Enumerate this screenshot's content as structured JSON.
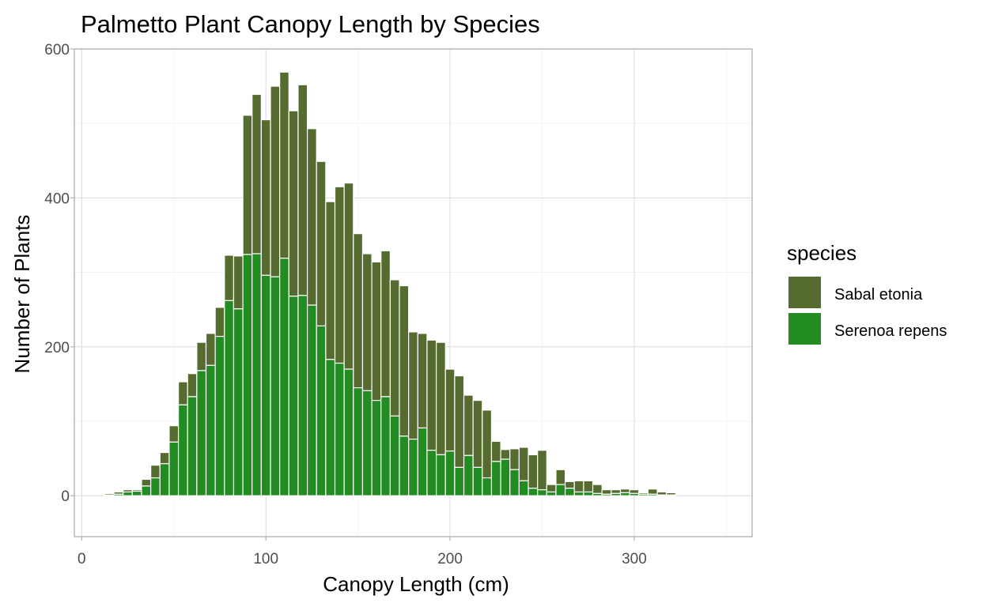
{
  "chart_data": {
    "type": "bar",
    "stacked": true,
    "title": "Palmetto Plant Canopy Length by Species",
    "xlabel": "Canopy Length (cm)",
    "ylabel": "Number of Plants",
    "xlim": [
      -4,
      364
    ],
    "ylim": [
      -55,
      600
    ],
    "x_ticks": [
      "0",
      "100",
      "200",
      "300"
    ],
    "y_ticks": [
      "0",
      "200",
      "400",
      "600"
    ],
    "bin_width": 5,
    "grid": true,
    "legend": {
      "title": "species",
      "position": "right"
    },
    "bin_centers": [
      10,
      15,
      20,
      25,
      30,
      35,
      40,
      45,
      50,
      55,
      60,
      65,
      70,
      75,
      80,
      85,
      90,
      95,
      100,
      105,
      110,
      115,
      120,
      125,
      130,
      135,
      140,
      145,
      150,
      155,
      160,
      165,
      170,
      175,
      180,
      185,
      190,
      195,
      200,
      205,
      210,
      215,
      220,
      225,
      230,
      235,
      240,
      245,
      250,
      255,
      260,
      265,
      270,
      275,
      280,
      285,
      290,
      295,
      300,
      305,
      310,
      315,
      320
    ],
    "series": [
      {
        "name": "Serenoa repens",
        "color": "#228b22",
        "values": [
          0,
          1,
          2,
          5,
          6,
          13,
          24,
          43,
          72,
          122,
          133,
          168,
          175,
          214,
          262,
          251,
          324,
          325,
          296,
          294,
          319,
          268,
          269,
          256,
          228,
          183,
          178,
          170,
          145,
          141,
          128,
          133,
          107,
          80,
          76,
          91,
          61,
          55,
          60,
          38,
          54,
          38,
          24,
          46,
          49,
          35,
          20,
          10,
          8,
          5,
          15,
          10,
          5,
          5,
          3,
          2,
          3,
          4,
          3,
          2,
          2,
          1,
          1
        ]
      },
      {
        "name": "Sabal etonia",
        "color": "#556b2f",
        "values": [
          0,
          2,
          3,
          3,
          2,
          9,
          17,
          15,
          22,
          31,
          31,
          38,
          43,
          39,
          61,
          71,
          187,
          214,
          209,
          256,
          250,
          249,
          283,
          237,
          221,
          212,
          237,
          250,
          207,
          184,
          186,
          196,
          183,
          202,
          144,
          127,
          148,
          151,
          110,
          123,
          81,
          90,
          91,
          27,
          13,
          28,
          45,
          45,
          53,
          10,
          20,
          9,
          15,
          15,
          12,
          6,
          5,
          5,
          5,
          2,
          7,
          4,
          3
        ]
      }
    ]
  }
}
